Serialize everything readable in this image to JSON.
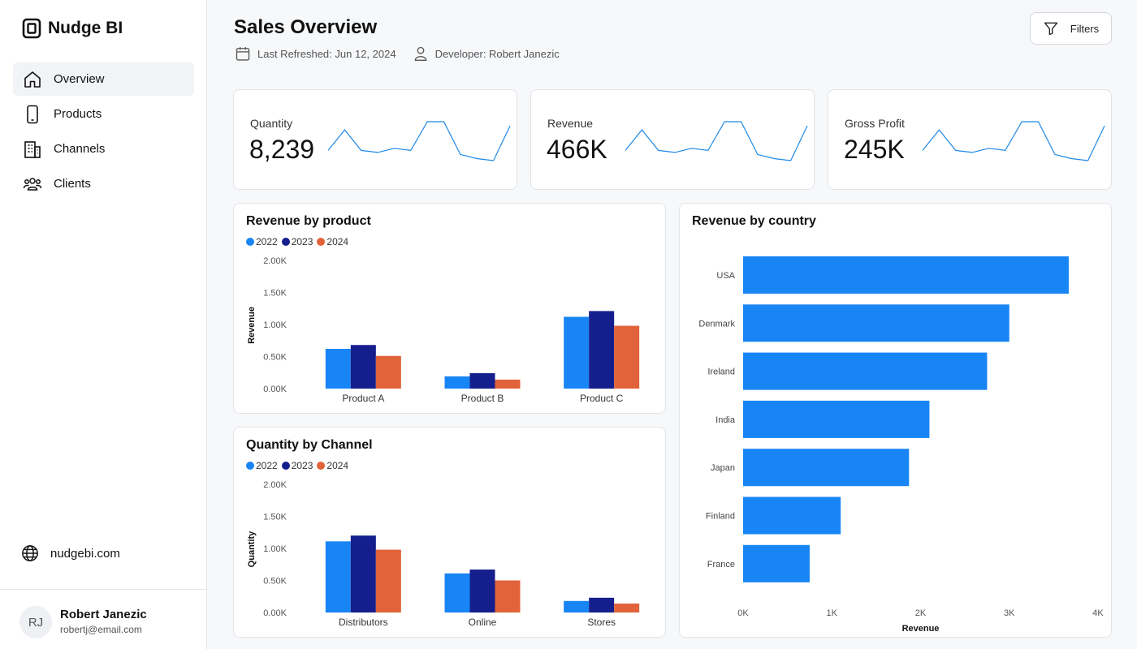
{
  "brand": {
    "name": "Nudge BI"
  },
  "sidebar": {
    "items": [
      {
        "label": "Overview",
        "icon": "home-icon",
        "active": true
      },
      {
        "label": "Products",
        "icon": "phone-icon",
        "active": false
      },
      {
        "label": "Channels",
        "icon": "building-icon",
        "active": false
      },
      {
        "label": "Clients",
        "icon": "users-icon",
        "active": false
      }
    ],
    "site_link": "nudgebi.com"
  },
  "user": {
    "initials": "RJ",
    "name": "Robert Janezic",
    "email": "robertj@email.com"
  },
  "header": {
    "title": "Sales Overview",
    "last_refreshed": "Last Refreshed: Jun 12, 2024",
    "developer": "Developer: Robert Janezic",
    "filters_label": "Filters"
  },
  "colors": {
    "y2022": "#1885f5",
    "y2023": "#141e8c",
    "y2024": "#e2633a",
    "spark": "#1e88e5"
  },
  "kpis": [
    {
      "label": "Quantity",
      "value": "8,239"
    },
    {
      "label": "Revenue",
      "value": "466K"
    },
    {
      "label": "Gross Profit",
      "value": "245K"
    }
  ],
  "chart_data": [
    {
      "id": "revenue-by-product",
      "type": "bar",
      "title": "Revenue by product",
      "ylabel": "Revenue",
      "xlabel": "",
      "categories": [
        "Product A",
        "Product B",
        "Product C"
      ],
      "yticks": [
        "0.00K",
        "0.50K",
        "1.00K",
        "1.50K",
        "2.00K"
      ],
      "ylim": [
        0,
        2000
      ],
      "series": [
        {
          "name": "2022",
          "values": [
            620,
            190,
            1120
          ]
        },
        {
          "name": "2023",
          "values": [
            680,
            240,
            1210
          ]
        },
        {
          "name": "2024",
          "values": [
            510,
            140,
            980
          ]
        }
      ]
    },
    {
      "id": "quantity-by-channel",
      "type": "bar",
      "title": "Quantity by Channel",
      "ylabel": "Quantity",
      "xlabel": "",
      "categories": [
        "Distributors",
        "Online",
        "Stores"
      ],
      "yticks": [
        "0.00K",
        "0.50K",
        "1.00K",
        "1.50K",
        "2.00K"
      ],
      "ylim": [
        0,
        2000
      ],
      "series": [
        {
          "name": "2022",
          "values": [
            1110,
            610,
            180
          ]
        },
        {
          "name": "2023",
          "values": [
            1200,
            670,
            230
          ]
        },
        {
          "name": "2024",
          "values": [
            980,
            500,
            140
          ]
        }
      ]
    },
    {
      "id": "revenue-by-country",
      "type": "bar",
      "orientation": "horizontal",
      "title": "Revenue by country",
      "xlabel": "Revenue",
      "ylabel": "",
      "categories": [
        "USA",
        "Denmark",
        "Ireland",
        "India",
        "Japan",
        "Finland",
        "France"
      ],
      "values": [
        3670,
        3000,
        2750,
        2100,
        1870,
        1100,
        750
      ],
      "xticks": [
        "0K",
        "1K",
        "2K",
        "3K",
        "4K"
      ],
      "xlim": [
        0,
        4000
      ]
    },
    {
      "id": "quantity-sparkline",
      "type": "line",
      "title": "Quantity",
      "values": [
        4,
        9,
        4,
        3.5,
        4.5,
        4,
        11,
        11,
        3,
        2,
        1.5,
        10
      ]
    },
    {
      "id": "revenue-sparkline",
      "type": "line",
      "title": "Revenue",
      "values": [
        4,
        9,
        4,
        3.5,
        4.5,
        4,
        11,
        11,
        3,
        2,
        1.5,
        10
      ]
    },
    {
      "id": "gross-profit-sparkline",
      "type": "line",
      "title": "Gross Profit",
      "values": [
        4,
        9,
        4,
        3.5,
        4.5,
        4,
        11,
        11,
        3,
        2,
        1.5,
        10
      ]
    }
  ]
}
